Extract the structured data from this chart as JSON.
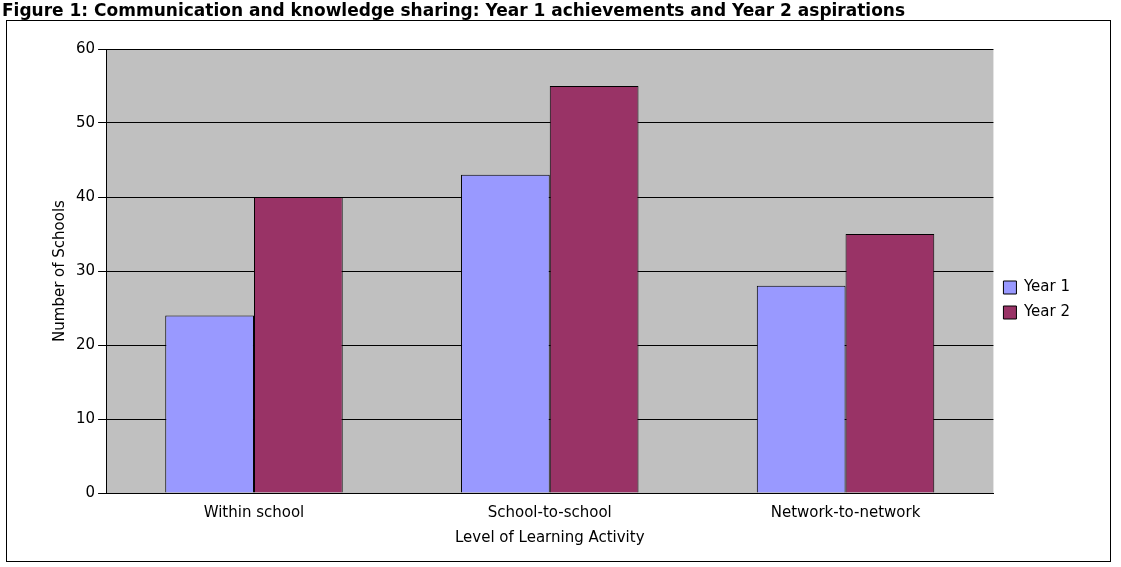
{
  "chart_data": {
    "type": "bar",
    "title": "Figure 1: Communication and knowledge sharing: Year 1 achievements and Year 2 aspirations",
    "xlabel": "Level of Learning Activity",
    "ylabel": "Number of Schools",
    "categories": [
      "Within school",
      "School-to-school",
      "Network-to-network"
    ],
    "series": [
      {
        "name": "Year 1",
        "color": "#9999ff",
        "values": [
          24,
          43,
          28
        ]
      },
      {
        "name": "Year 2",
        "color": "#993366",
        "values": [
          40,
          55,
          35
        ]
      }
    ],
    "ylim": [
      0,
      60
    ],
    "yticks": [
      0,
      10,
      20,
      30,
      40,
      50,
      60
    ],
    "grid": "y",
    "legend": "right"
  }
}
